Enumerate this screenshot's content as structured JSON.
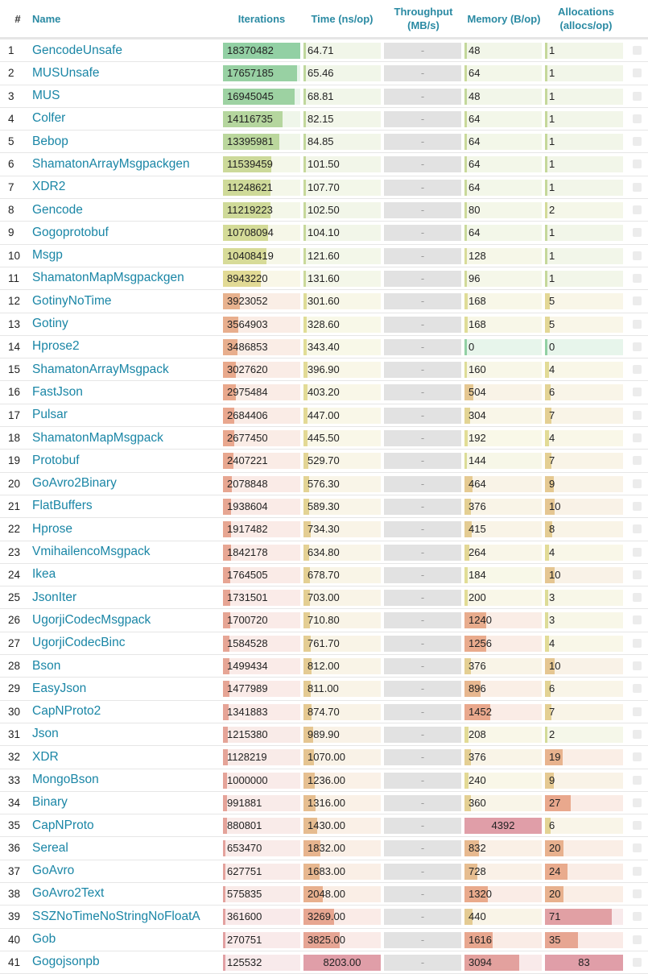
{
  "header": {
    "idx": "#",
    "name": "Name",
    "iterations": "Iterations",
    "time": "Time (ns/op)",
    "throughput": "Throughput (MB/s)",
    "memory": "Memory (B/op)",
    "allocations": "Allocations (allocs/op)"
  },
  "throughput_placeholder": "-",
  "rows": [
    {
      "idx": "1",
      "name": "GencodeUnsafe",
      "iterations": "18370482",
      "time": "64.71",
      "memory": "48",
      "allocs": "1"
    },
    {
      "idx": "2",
      "name": "MUSUnsafe",
      "iterations": "17657185",
      "time": "65.46",
      "memory": "64",
      "allocs": "1"
    },
    {
      "idx": "3",
      "name": "MUS",
      "iterations": "16945045",
      "time": "68.81",
      "memory": "48",
      "allocs": "1"
    },
    {
      "idx": "4",
      "name": "Colfer",
      "iterations": "14116735",
      "time": "82.15",
      "memory": "64",
      "allocs": "1"
    },
    {
      "idx": "5",
      "name": "Bebop",
      "iterations": "13395981",
      "time": "84.85",
      "memory": "64",
      "allocs": "1"
    },
    {
      "idx": "6",
      "name": "ShamatonArrayMsgpackgen",
      "iterations": "11539459",
      "time": "101.50",
      "memory": "64",
      "allocs": "1"
    },
    {
      "idx": "7",
      "name": "XDR2",
      "iterations": "11248621",
      "time": "107.70",
      "memory": "64",
      "allocs": "1"
    },
    {
      "idx": "8",
      "name": "Gencode",
      "iterations": "11219223",
      "time": "102.50",
      "memory": "80",
      "allocs": "2"
    },
    {
      "idx": "9",
      "name": "Gogoprotobuf",
      "iterations": "10708094",
      "time": "104.10",
      "memory": "64",
      "allocs": "1"
    },
    {
      "idx": "10",
      "name": "Msgp",
      "iterations": "10408419",
      "time": "121.60",
      "memory": "128",
      "allocs": "1"
    },
    {
      "idx": "11",
      "name": "ShamatonMapMsgpackgen",
      "iterations": "8943220",
      "time": "131.60",
      "memory": "96",
      "allocs": "1"
    },
    {
      "idx": "12",
      "name": "GotinyNoTime",
      "iterations": "3923052",
      "time": "301.60",
      "memory": "168",
      "allocs": "5"
    },
    {
      "idx": "13",
      "name": "Gotiny",
      "iterations": "3564903",
      "time": "328.60",
      "memory": "168",
      "allocs": "5"
    },
    {
      "idx": "14",
      "name": "Hprose2",
      "iterations": "3486853",
      "time": "343.40",
      "memory": "0",
      "allocs": "0"
    },
    {
      "idx": "15",
      "name": "ShamatonArrayMsgpack",
      "iterations": "3027620",
      "time": "396.90",
      "memory": "160",
      "allocs": "4"
    },
    {
      "idx": "16",
      "name": "FastJson",
      "iterations": "2975484",
      "time": "403.20",
      "memory": "504",
      "allocs": "6"
    },
    {
      "idx": "17",
      "name": "Pulsar",
      "iterations": "2684406",
      "time": "447.00",
      "memory": "304",
      "allocs": "7"
    },
    {
      "idx": "18",
      "name": "ShamatonMapMsgpack",
      "iterations": "2677450",
      "time": "445.50",
      "memory": "192",
      "allocs": "4"
    },
    {
      "idx": "19",
      "name": "Protobuf",
      "iterations": "2407221",
      "time": "529.70",
      "memory": "144",
      "allocs": "7"
    },
    {
      "idx": "20",
      "name": "GoAvro2Binary",
      "iterations": "2078848",
      "time": "576.30",
      "memory": "464",
      "allocs": "9"
    },
    {
      "idx": "21",
      "name": "FlatBuffers",
      "iterations": "1938604",
      "time": "589.30",
      "memory": "376",
      "allocs": "10"
    },
    {
      "idx": "22",
      "name": "Hprose",
      "iterations": "1917482",
      "time": "734.30",
      "memory": "415",
      "allocs": "8"
    },
    {
      "idx": "23",
      "name": "VmihailencoMsgpack",
      "iterations": "1842178",
      "time": "634.80",
      "memory": "264",
      "allocs": "4"
    },
    {
      "idx": "24",
      "name": "Ikea",
      "iterations": "1764505",
      "time": "678.70",
      "memory": "184",
      "allocs": "10"
    },
    {
      "idx": "25",
      "name": "JsonIter",
      "iterations": "1731501",
      "time": "703.00",
      "memory": "200",
      "allocs": "3"
    },
    {
      "idx": "26",
      "name": "UgorjiCodecMsgpack",
      "iterations": "1700720",
      "time": "710.80",
      "memory": "1240",
      "allocs": "3"
    },
    {
      "idx": "27",
      "name": "UgorjiCodecBinc",
      "iterations": "1584528",
      "time": "761.70",
      "memory": "1256",
      "allocs": "4"
    },
    {
      "idx": "28",
      "name": "Bson",
      "iterations": "1499434",
      "time": "812.00",
      "memory": "376",
      "allocs": "10"
    },
    {
      "idx": "29",
      "name": "EasyJson",
      "iterations": "1477989",
      "time": "811.00",
      "memory": "896",
      "allocs": "6"
    },
    {
      "idx": "30",
      "name": "CapNProto2",
      "iterations": "1341883",
      "time": "874.70",
      "memory": "1452",
      "allocs": "7"
    },
    {
      "idx": "31",
      "name": "Json",
      "iterations": "1215380",
      "time": "989.90",
      "memory": "208",
      "allocs": "2"
    },
    {
      "idx": "32",
      "name": "XDR",
      "iterations": "1128219",
      "time": "1070.00",
      "memory": "376",
      "allocs": "19"
    },
    {
      "idx": "33",
      "name": "MongoBson",
      "iterations": "1000000",
      "time": "1236.00",
      "memory": "240",
      "allocs": "9"
    },
    {
      "idx": "34",
      "name": "Binary",
      "iterations": "991881",
      "time": "1316.00",
      "memory": "360",
      "allocs": "27"
    },
    {
      "idx": "35",
      "name": "CapNProto",
      "iterations": "880801",
      "time": "1430.00",
      "memory": "4392",
      "allocs": "6"
    },
    {
      "idx": "36",
      "name": "Sereal",
      "iterations": "653470",
      "time": "1832.00",
      "memory": "832",
      "allocs": "20"
    },
    {
      "idx": "37",
      "name": "GoAvro",
      "iterations": "627751",
      "time": "1683.00",
      "memory": "728",
      "allocs": "24"
    },
    {
      "idx": "38",
      "name": "GoAvro2Text",
      "iterations": "575835",
      "time": "2048.00",
      "memory": "1320",
      "allocs": "20"
    },
    {
      "idx": "39",
      "name": "SSZNoTimeNoStringNoFloatA",
      "iterations": "361600",
      "time": "3269.00",
      "memory": "440",
      "allocs": "71"
    },
    {
      "idx": "40",
      "name": "Gob",
      "iterations": "270751",
      "time": "3825.00",
      "memory": "1616",
      "allocs": "35"
    },
    {
      "idx": "41",
      "name": "Gogojsonpb",
      "iterations": "125532",
      "time": "8203.00",
      "memory": "3094",
      "allocs": "83"
    }
  ]
}
